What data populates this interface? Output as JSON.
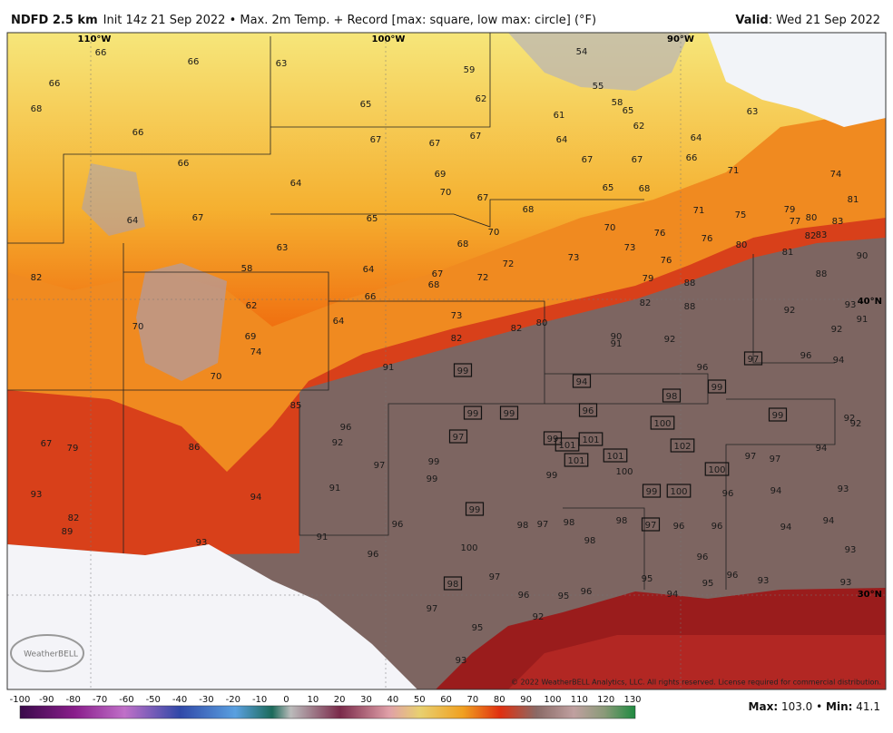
{
  "header": {
    "title": "NDFD 2.5 km",
    "subtitle": "Init 14z 21 Sep 2022 • Max. 2m Temp. + Record [max: square, low max: circle] (°F)",
    "valid_label": "Valid",
    "valid_date": "Wed 21 Sep 2022"
  },
  "map": {
    "longitudes": [
      "110°W",
      "100°W",
      "90°W"
    ],
    "latitudes": [
      "40°N",
      "30°N"
    ],
    "logo": "WeatherBELL",
    "copyright": "© 2022 WeatherBELL Analytics, LLC. All rights reserved. License required for commercial distribution.",
    "labels": [
      {
        "value": 66
      },
      {
        "value": 66
      },
      {
        "value": 66
      },
      {
        "value": 68
      },
      {
        "value": 66
      },
      {
        "value": 66
      },
      {
        "value": 64
      },
      {
        "value": 67
      },
      {
        "value": 63
      },
      {
        "value": 59
      },
      {
        "value": 54
      },
      {
        "value": 55
      },
      {
        "value": 58
      },
      {
        "value": 65
      },
      {
        "value": 62
      },
      {
        "value": 65
      },
      {
        "value": 61
      },
      {
        "value": 62
      },
      {
        "value": 67
      },
      {
        "value": 67
      },
      {
        "value": 67
      },
      {
        "value": 64
      },
      {
        "value": 64
      },
      {
        "value": 63
      },
      {
        "value": 67
      },
      {
        "value": 67
      },
      {
        "value": 66
      },
      {
        "value": 71
      },
      {
        "value": 74
      },
      {
        "value": 69
      },
      {
        "value": 64
      },
      {
        "value": 70
      },
      {
        "value": 67
      },
      {
        "value": 65
      },
      {
        "value": 68
      },
      {
        "value": 81
      },
      {
        "value": 65
      },
      {
        "value": 68
      },
      {
        "value": 70
      },
      {
        "value": 71
      },
      {
        "value": 75
      },
      {
        "value": 79
      },
      {
        "value": 77
      },
      {
        "value": 80
      },
      {
        "value": 83
      },
      {
        "value": 82
      },
      {
        "value": 83
      },
      {
        "value": 63
      },
      {
        "value": 68
      },
      {
        "value": 70
      },
      {
        "value": 73
      },
      {
        "value": 76
      },
      {
        "value": 76
      },
      {
        "value": 80
      },
      {
        "value": 81
      },
      {
        "value": 90
      },
      {
        "value": 82
      },
      {
        "value": 58
      },
      {
        "value": 64
      },
      {
        "value": 67
      },
      {
        "value": 68
      },
      {
        "value": 72
      },
      {
        "value": 72
      },
      {
        "value": 73
      },
      {
        "value": 76
      },
      {
        "value": 79
      },
      {
        "value": 88
      },
      {
        "value": 88
      },
      {
        "value": 66
      },
      {
        "value": 62
      },
      {
        "value": 82
      },
      {
        "value": 88
      },
      {
        "value": 93
      },
      {
        "value": 92
      },
      {
        "value": 91
      },
      {
        "value": 64
      },
      {
        "value": 73
      },
      {
        "value": 82
      },
      {
        "value": 80
      },
      {
        "value": 70
      },
      {
        "value": 69
      },
      {
        "value": 74
      },
      {
        "value": 82
      },
      {
        "value": 90
      },
      {
        "value": 91
      },
      {
        "value": 92
      },
      {
        "value": 92
      },
      {
        "value": 91
      },
      {
        "value": 99,
        "record": "max"
      },
      {
        "value": 70
      },
      {
        "value": 96
      },
      {
        "value": 97,
        "record": "max"
      },
      {
        "value": 96
      },
      {
        "value": 94
      },
      {
        "value": 94,
        "record": "max"
      },
      {
        "value": 99,
        "record": "max"
      },
      {
        "value": 98,
        "record": "max"
      },
      {
        "value": 85
      },
      {
        "value": 96,
        "record": "max"
      },
      {
        "value": 99,
        "record": "max"
      },
      {
        "value": 99,
        "record": "max"
      },
      {
        "value": 99,
        "record": "max"
      },
      {
        "value": 92
      },
      {
        "value": 92
      },
      {
        "value": 96
      },
      {
        "value": 100,
        "record": "max"
      },
      {
        "value": 92
      },
      {
        "value": 97,
        "record": "max"
      },
      {
        "value": 99,
        "record": "max"
      },
      {
        "value": 101,
        "record": "max"
      },
      {
        "value": 101,
        "record": "max"
      },
      {
        "value": 102,
        "record": "max"
      },
      {
        "value": 67
      },
      {
        "value": 79
      },
      {
        "value": 86
      },
      {
        "value": 94
      },
      {
        "value": 97
      },
      {
        "value": 99
      },
      {
        "value": 101,
        "record": "max"
      },
      {
        "value": 101,
        "record": "max"
      },
      {
        "value": 97
      },
      {
        "value": 97
      },
      {
        "value": 99
      },
      {
        "value": 100
      },
      {
        "value": 100,
        "record": "max"
      },
      {
        "value": 99
      },
      {
        "value": 91
      },
      {
        "value": 93
      },
      {
        "value": 94
      },
      {
        "value": 99,
        "record": "max"
      },
      {
        "value": 100,
        "record": "max"
      },
      {
        "value": 96
      },
      {
        "value": 94
      },
      {
        "value": 93
      },
      {
        "value": 99,
        "record": "max"
      },
      {
        "value": 82
      },
      {
        "value": 89
      },
      {
        "value": 96
      },
      {
        "value": 98
      },
      {
        "value": 97
      },
      {
        "value": 98
      },
      {
        "value": 98
      },
      {
        "value": 97,
        "record": "max"
      },
      {
        "value": 96
      },
      {
        "value": 96
      },
      {
        "value": 94
      },
      {
        "value": 94
      },
      {
        "value": 91
      },
      {
        "value": 98
      },
      {
        "value": 93
      },
      {
        "value": 100
      },
      {
        "value": 96
      },
      {
        "value": 96
      },
      {
        "value": 93
      },
      {
        "value": 96
      },
      {
        "value": 93
      },
      {
        "value": 93
      },
      {
        "value": 97
      },
      {
        "value": 95
      },
      {
        "value": 95
      },
      {
        "value": 98,
        "record": "max"
      },
      {
        "value": 96
      },
      {
        "value": 95
      },
      {
        "value": 96
      },
      {
        "value": 94
      },
      {
        "value": 97
      },
      {
        "value": 92
      },
      {
        "value": 95
      },
      {
        "value": 93
      }
    ]
  },
  "colorbar": {
    "ticks": [
      -100,
      -90,
      -80,
      -70,
      -60,
      -50,
      -40,
      -30,
      -20,
      -10,
      0,
      10,
      20,
      30,
      40,
      50,
      60,
      70,
      80,
      90,
      100,
      110,
      120,
      130
    ]
  },
  "stats": {
    "max_label": "Max:",
    "max": "103.0",
    "separator": "•",
    "min_label": "Min:",
    "min": "41.1"
  }
}
